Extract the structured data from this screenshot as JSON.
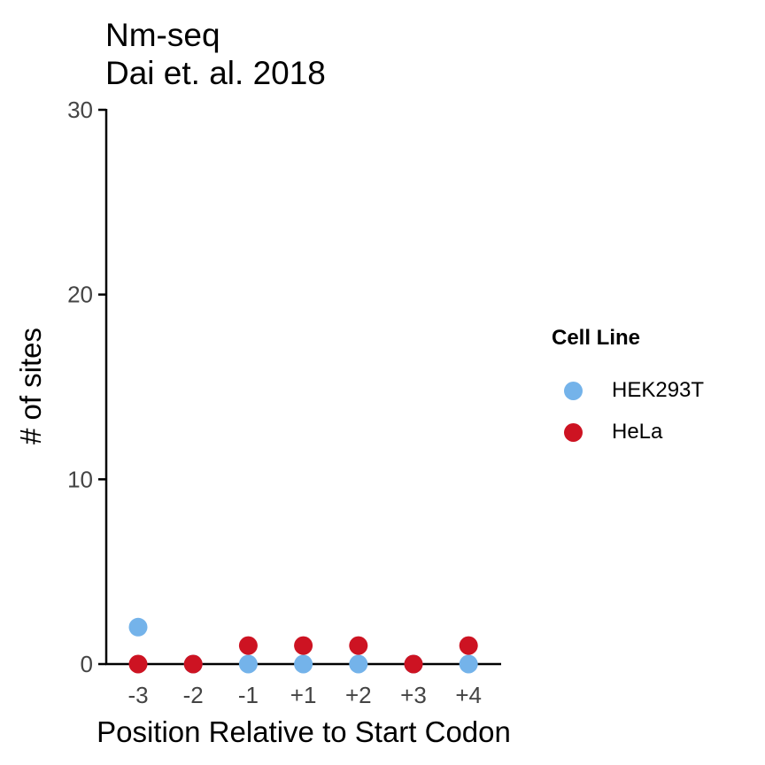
{
  "chart_data": {
    "type": "scatter",
    "title": "Nm-seq",
    "subtitle": "Dai et. al. 2018",
    "xlabel": "Position Relative to Start Codon",
    "ylabel": "# of sites",
    "categories": [
      "-3",
      "-2",
      "-1",
      "+1",
      "+2",
      "+3",
      "+4"
    ],
    "ylim": [
      0,
      30
    ],
    "yticks": [
      0,
      10,
      20,
      30
    ],
    "grid": false,
    "legend": {
      "title": "Cell Line",
      "placement": "right"
    },
    "series": [
      {
        "name": "HEK293T",
        "color": "#74b3ea",
        "values": [
          2,
          0,
          0,
          0,
          0,
          0,
          0
        ]
      },
      {
        "name": "HeLa",
        "color": "#cd1322",
        "values": [
          0,
          0,
          1,
          1,
          1,
          0,
          1
        ]
      }
    ]
  }
}
